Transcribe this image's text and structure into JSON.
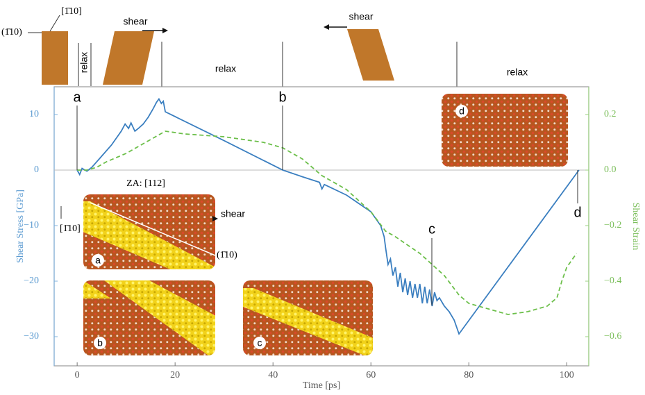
{
  "chart_data": {
    "type": "line",
    "xlabel": "Time [ps]",
    "ylabel": "Shear Stress [GPa]",
    "y2label": "Shear Strain",
    "xlim": [
      -4.7,
      104.5
    ],
    "ylim": [
      -35.25,
      15
    ],
    "y2lim": [
      -0.705,
      0.3
    ],
    "xticks": [
      0,
      20,
      40,
      60,
      80,
      100
    ],
    "yticks": [
      {
        "value": 10,
        "label": "10"
      },
      {
        "value": 0,
        "label": "0"
      },
      {
        "value": -10,
        "label": "−10"
      },
      {
        "value": -20,
        "label": "−20"
      },
      {
        "value": -30,
        "label": "−30"
      }
    ],
    "y2ticks": [
      {
        "value": 0.2,
        "label": "0.2"
      },
      {
        "value": 0,
        "label": "0.0"
      },
      {
        "value": -0.2,
        "label": "−0.2"
      },
      {
        "value": -0.4,
        "label": "−0.4"
      },
      {
        "value": -0.6,
        "label": "−0.6"
      }
    ],
    "series": [
      {
        "color": "#3b7fc0",
        "axis": "y",
        "dash": false,
        "x": [
          0,
          0.5,
          1,
          2,
          3,
          5,
          7,
          9,
          9.8,
          10.5,
          11,
          11.8,
          12.5,
          13.5,
          14.5,
          15.5,
          16.2,
          16.7,
          17.2,
          17.6,
          18,
          30,
          42,
          46,
          49.5,
          50,
          50.5,
          55,
          60,
          62,
          62.7,
          63,
          63.5,
          64,
          64.5,
          65,
          65.5,
          66,
          66.5,
          67,
          67.5,
          68,
          68.5,
          69,
          69.5,
          70,
          70.5,
          71,
          71.5,
          72,
          72.5,
          73,
          73.5,
          74,
          75,
          76,
          77,
          78,
          102.5
        ],
        "values": [
          0,
          -0.8,
          0.3,
          -0.2,
          0.5,
          2.5,
          4.5,
          7,
          8.3,
          7.5,
          8.5,
          7,
          7.5,
          8.3,
          9.5,
          11,
          12.2,
          12.8,
          12,
          12.4,
          10.5,
          5.3,
          0,
          -1.2,
          -2.2,
          -3.4,
          -2.6,
          -4.5,
          -7.5,
          -10,
          -12,
          -14,
          -17,
          -16,
          -19,
          -17.5,
          -21,
          -18.5,
          -22,
          -19.5,
          -22.5,
          -20,
          -23,
          -20.5,
          -23,
          -20.5,
          -24,
          -21,
          -24,
          -21.5,
          -24.5,
          -22,
          -23.5,
          -23,
          -24.5,
          -25.5,
          -27,
          -29.5,
          0
        ]
      },
      {
        "color": "#6cbf4a",
        "axis": "y2",
        "dash": true,
        "x": [
          0,
          2,
          4,
          6,
          10,
          14,
          18,
          22,
          30,
          38,
          42,
          46,
          50,
          55,
          60,
          63,
          65,
          70,
          75,
          78,
          80,
          82,
          84,
          86,
          88,
          92,
          96,
          98,
          99,
          100,
          102
        ],
        "values": [
          0,
          0,
          0.01,
          0.03,
          0.06,
          0.1,
          0.14,
          0.13,
          0.12,
          0.1,
          0.08,
          0.04,
          -0.02,
          -0.07,
          -0.15,
          -0.22,
          -0.24,
          -0.3,
          -0.38,
          -0.45,
          -0.48,
          -0.49,
          -0.5,
          -0.51,
          -0.52,
          -0.51,
          -0.49,
          -0.46,
          -0.4,
          -0.35,
          -0.3
        ]
      }
    ],
    "markers": [
      "a",
      "b",
      "c",
      "d"
    ],
    "schematic": {
      "direction": "[1̄10]",
      "plane": "(1̄10)",
      "relax": [
        "relax",
        "relax",
        "relax"
      ],
      "shear": [
        "shear",
        "shear"
      ]
    },
    "insets": {
      "zone_axis": "ZA: [112]",
      "shear": "shear",
      "direction": "[1̄10]",
      "plane": "(1̄10)",
      "labels": [
        "a",
        "b",
        "c",
        "d"
      ]
    }
  }
}
